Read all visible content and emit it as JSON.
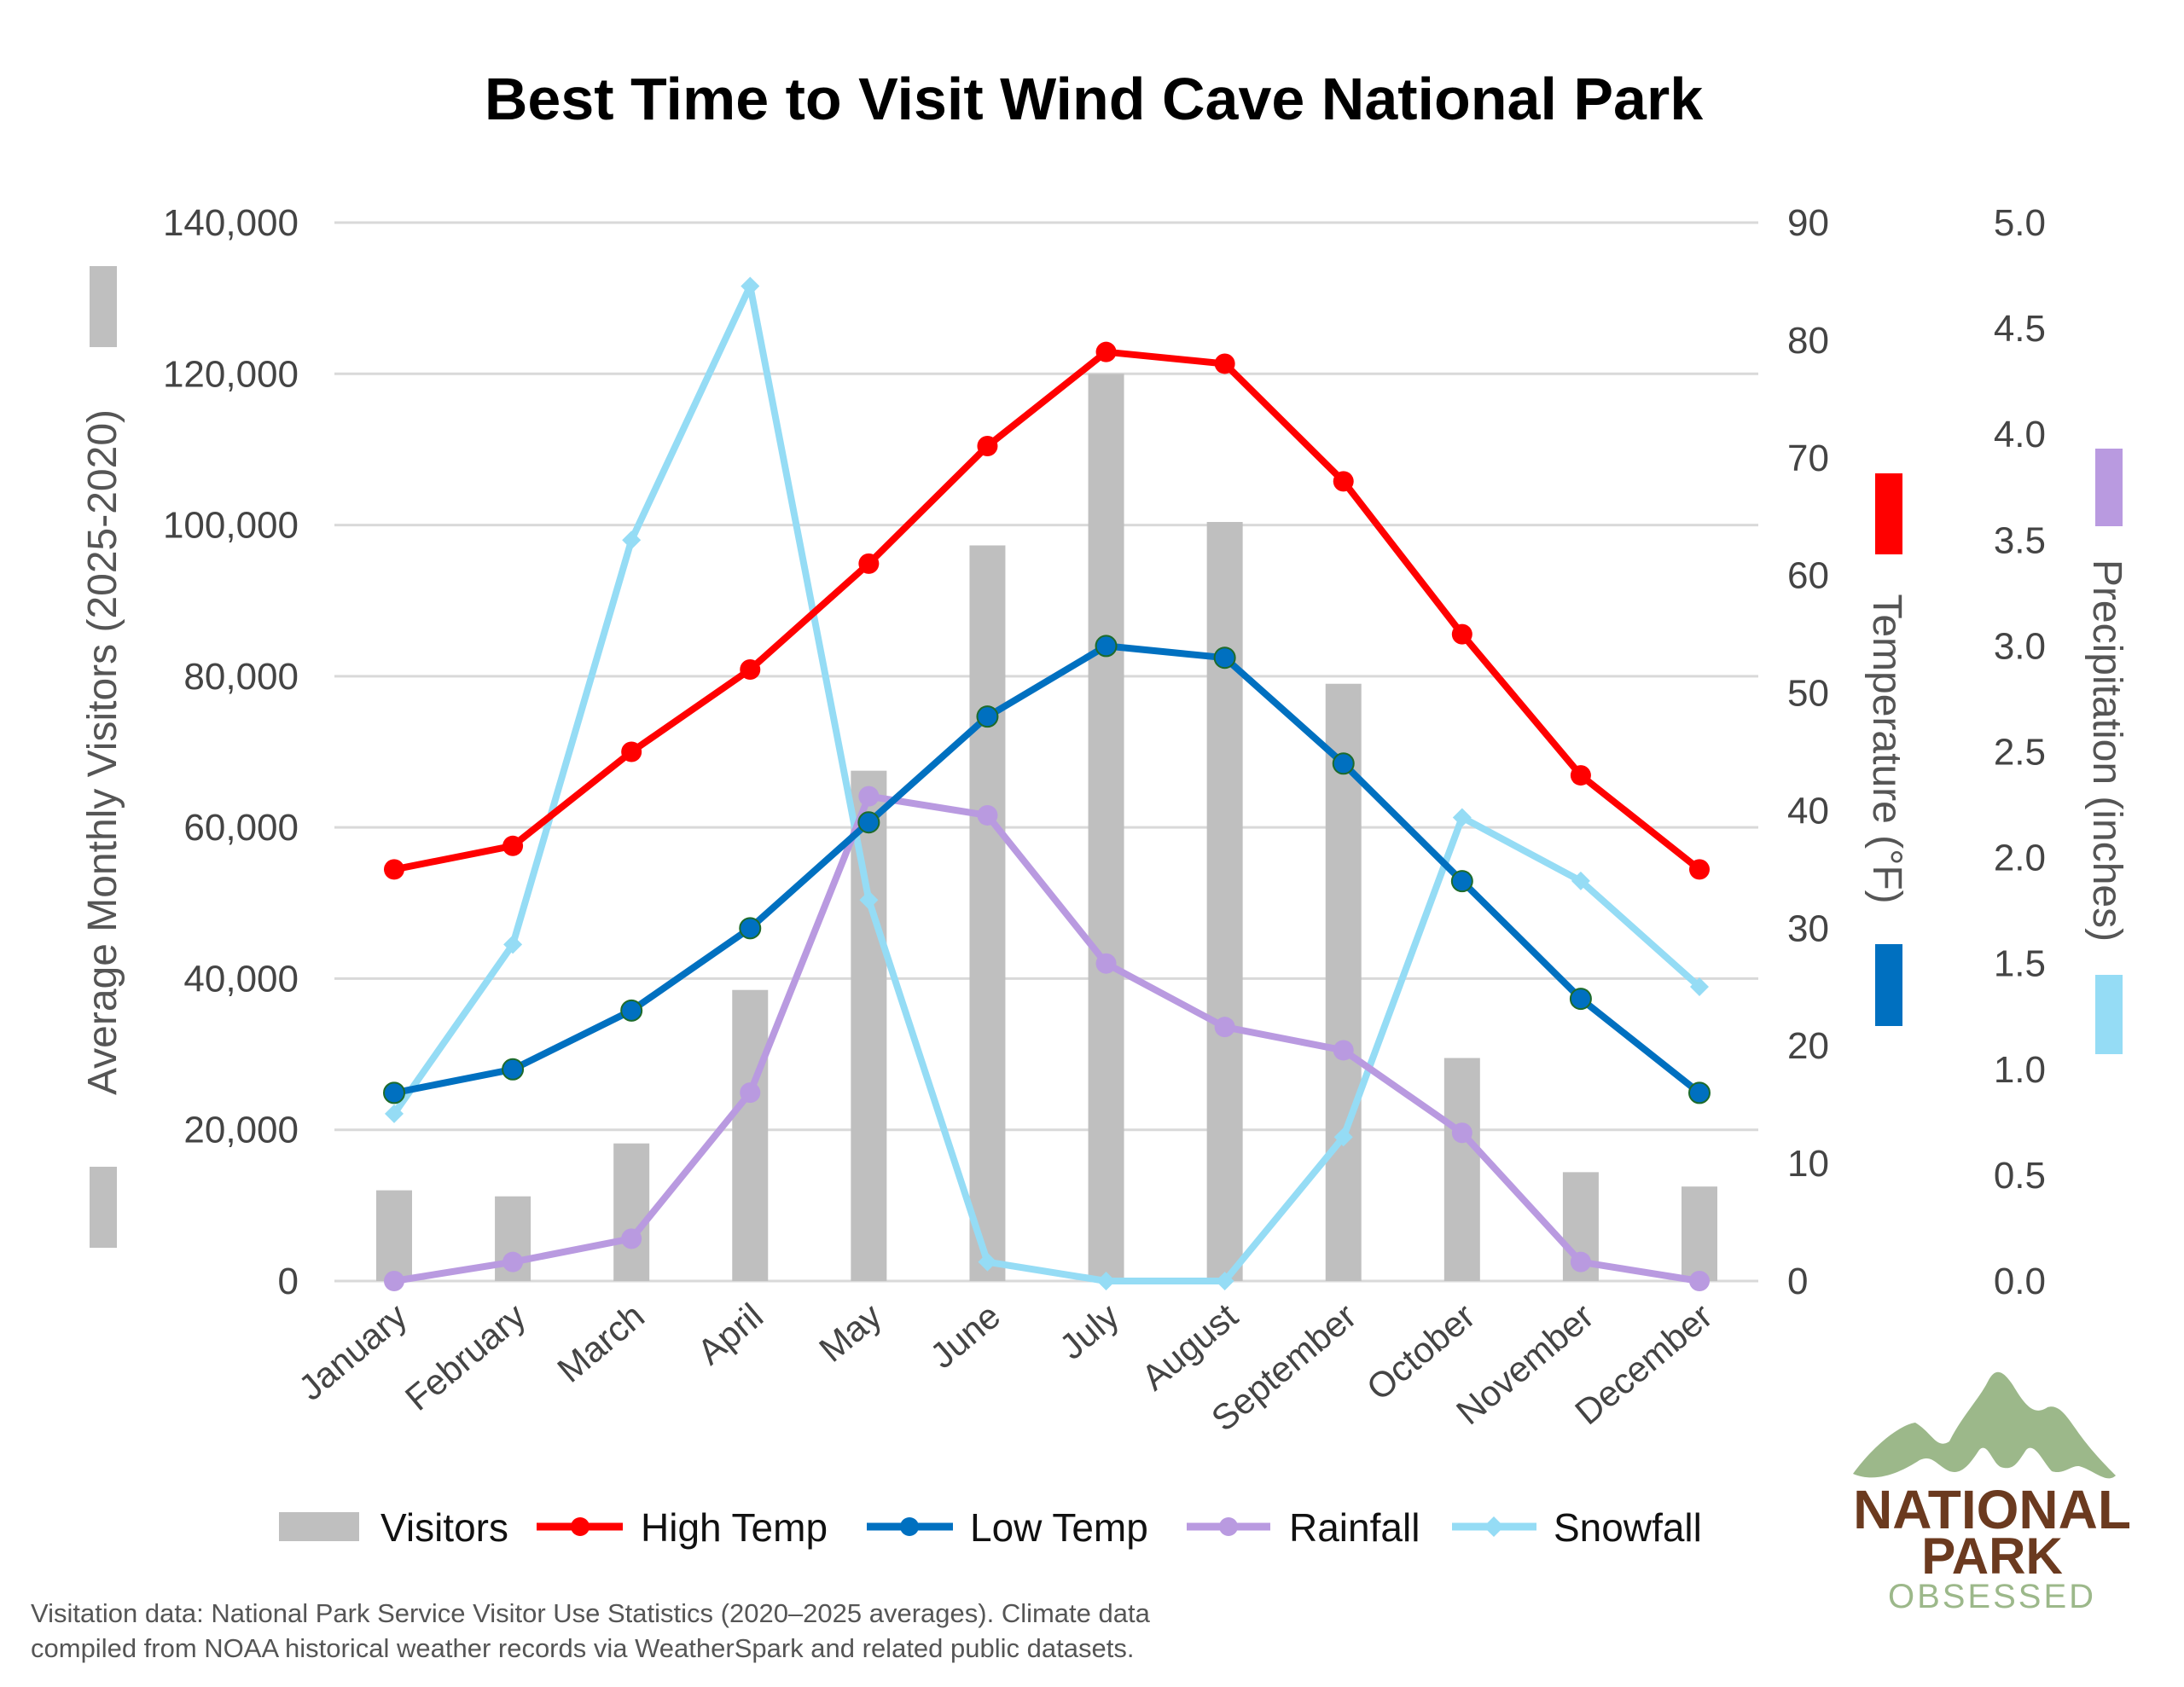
{
  "chart_data": {
    "type": "bar+line",
    "title": "Best Time to Visit Wind Cave National Park",
    "categories": [
      "January",
      "February",
      "March",
      "April",
      "May",
      "June",
      "July",
      "August",
      "September",
      "October",
      "November",
      "December"
    ],
    "axes": {
      "left": {
        "label": "Average Monthly Visitors (2025-2020)",
        "range": [
          0,
          140000
        ],
        "ticks": [
          "0",
          "20,000",
          "40,000",
          "60,000",
          "80,000",
          "100,000",
          "120,000",
          "140,000"
        ]
      },
      "right_temperature": {
        "label": "Temperature (°F)",
        "range": [
          0,
          90
        ],
        "ticks": [
          "0",
          "10",
          "20",
          "30",
          "40",
          "50",
          "60",
          "70",
          "80",
          "90"
        ]
      },
      "right_precipitation": {
        "label": "Precipitation (inches)",
        "range": [
          0,
          5
        ],
        "ticks": [
          "0.0",
          "0.5",
          "1.0",
          "1.5",
          "2.0",
          "2.5",
          "3.0",
          "3.5",
          "4.0",
          "4.5",
          "5.0"
        ]
      }
    },
    "grid": true,
    "legend_position": "bottom",
    "series": [
      {
        "name": "Visitors",
        "type": "bar",
        "axis": "left",
        "color": "#bfbfbf",
        "values": [
          12000,
          11200,
          18200,
          38500,
          67500,
          97300,
          120000,
          100400,
          79000,
          29500,
          14400,
          12500
        ]
      },
      {
        "name": "High Temp",
        "type": "line",
        "axis": "right_temperature",
        "color": "#ff0000",
        "marker": "circle",
        "values": [
          35,
          37,
          45,
          52,
          61,
          71,
          79,
          78,
          68,
          55,
          43,
          35
        ]
      },
      {
        "name": "Low Temp",
        "type": "line",
        "axis": "right_temperature",
        "color": "#0070c0",
        "marker": "circle",
        "values": [
          16,
          18,
          23,
          30,
          39,
          48,
          54,
          53,
          44,
          34,
          24,
          16
        ]
      },
      {
        "name": "Rainfall",
        "type": "line",
        "axis": "right_precipitation",
        "color": "#b99ae0",
        "marker": "circle",
        "values": [
          0.0,
          0.09,
          0.2,
          0.89,
          2.29,
          2.2,
          1.5,
          1.2,
          1.09,
          0.7,
          0.09,
          0.0
        ]
      },
      {
        "name": "Snowfall",
        "type": "line",
        "axis": "right_precipitation",
        "color": "#95dcf5",
        "marker": "diamond",
        "values": [
          0.79,
          1.59,
          3.5,
          4.7,
          1.8,
          0.09,
          0.0,
          0.0,
          0.68,
          2.19,
          1.89,
          1.39
        ]
      }
    ]
  },
  "footnote": {
    "line1": "Visitation data: National Park Service Visitor Use Statistics (2020–2025 averages). Climate data",
    "line2": "compiled from NOAA historical weather records via WeatherSpark and related public datasets."
  },
  "logo": {
    "line1": "NATIONAL",
    "line2": "PARK",
    "line3": "OBSESSED",
    "mountain_color": "#9cb88a",
    "text_color": "#6b3a1f"
  }
}
